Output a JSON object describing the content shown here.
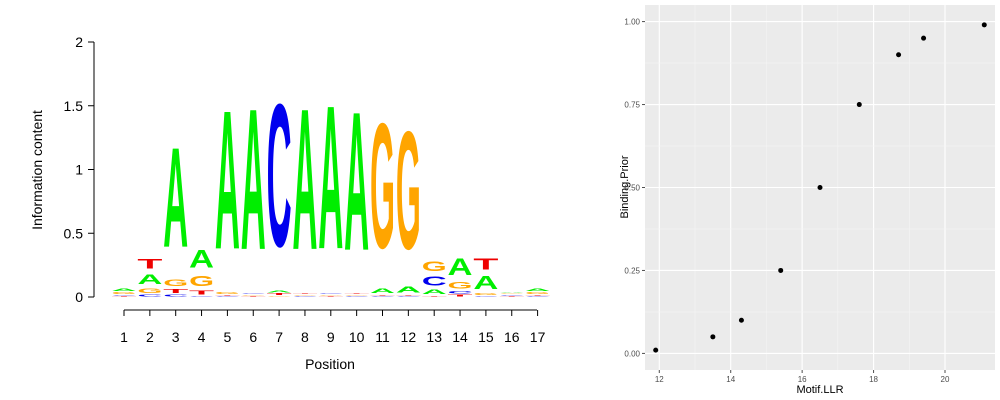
{
  "chart_data": [
    {
      "type": "sequence-logo",
      "xlabel": "Position",
      "ylabel": "Information content",
      "ylim": [
        0,
        2
      ],
      "y_ticks": [
        "0",
        "0.5",
        "1",
        "1.5",
        "2"
      ],
      "x_ticks": [
        "1",
        "2",
        "3",
        "4",
        "5",
        "6",
        "7",
        "8",
        "9",
        "10",
        "11",
        "12",
        "13",
        "14",
        "15",
        "16",
        "17"
      ],
      "letter_colors": {
        "A": "#00ee00",
        "C": "#0000ee",
        "G": "#ffa500",
        "T": "#ee0000"
      },
      "positions": [
        [
          {
            "l": "T",
            "h": 0.01
          },
          {
            "l": "C",
            "h": 0.01
          },
          {
            "l": "G",
            "h": 0.02
          },
          {
            "l": "A",
            "h": 0.03
          }
        ],
        [
          {
            "l": "C",
            "h": 0.02
          },
          {
            "l": "G",
            "h": 0.06
          },
          {
            "l": "A",
            "h": 0.12
          },
          {
            "l": "T",
            "h": 0.12
          }
        ],
        [
          {
            "l": "C",
            "h": 0.02
          },
          {
            "l": "T",
            "h": 0.05
          },
          {
            "l": "G",
            "h": 0.08
          },
          {
            "l": "A",
            "h": 1.25
          }
        ],
        [
          {
            "l": "C",
            "h": 0.01
          },
          {
            "l": "T",
            "h": 0.05
          },
          {
            "l": "G",
            "h": 0.13
          },
          {
            "l": "A",
            "h": 0.22
          }
        ],
        [
          {
            "l": "C",
            "h": 0.01
          },
          {
            "l": "T",
            "h": 0.01
          },
          {
            "l": "G",
            "h": 0.02
          },
          {
            "l": "A",
            "h": 1.74
          }
        ],
        [
          {
            "l": "T",
            "h": 0.01
          },
          {
            "l": "G",
            "h": 0.01
          },
          {
            "l": "C",
            "h": 0.01
          },
          {
            "l": "A",
            "h": 1.77
          }
        ],
        [
          {
            "l": "G",
            "h": 0.01
          },
          {
            "l": "T",
            "h": 0.02
          },
          {
            "l": "A",
            "h": 0.02
          },
          {
            "l": "C",
            "h": 1.79
          }
        ],
        [
          {
            "l": "C",
            "h": 0.01
          },
          {
            "l": "G",
            "h": 0.01
          },
          {
            "l": "T",
            "h": 0.01
          },
          {
            "l": "A",
            "h": 1.77
          }
        ],
        [
          {
            "l": "T",
            "h": 0.01
          },
          {
            "l": "G",
            "h": 0.01
          },
          {
            "l": "C",
            "h": 0.01
          },
          {
            "l": "A",
            "h": 1.8
          }
        ],
        [
          {
            "l": "C",
            "h": 0.01
          },
          {
            "l": "G",
            "h": 0.01
          },
          {
            "l": "T",
            "h": 0.01
          },
          {
            "l": "A",
            "h": 1.74
          }
        ],
        [
          {
            "l": "C",
            "h": 0.01
          },
          {
            "l": "T",
            "h": 0.01
          },
          {
            "l": "A",
            "h": 0.06
          },
          {
            "l": "G",
            "h": 1.57
          }
        ],
        [
          {
            "l": "C",
            "h": 0.01
          },
          {
            "l": "T",
            "h": 0.01
          },
          {
            "l": "A",
            "h": 0.07
          },
          {
            "l": "G",
            "h": 1.48
          }
        ],
        [
          {
            "l": "T",
            "h": 0.01
          },
          {
            "l": "A",
            "h": 0.06
          },
          {
            "l": "C",
            "h": 0.11
          },
          {
            "l": "G",
            "h": 0.12
          }
        ],
        [
          {
            "l": "T",
            "h": 0.02
          },
          {
            "l": "C",
            "h": 0.03
          },
          {
            "l": "G",
            "h": 0.08
          },
          {
            "l": "A",
            "h": 0.21
          }
        ],
        [
          {
            "l": "C",
            "h": 0.01
          },
          {
            "l": "G",
            "h": 0.02
          },
          {
            "l": "A",
            "h": 0.16
          },
          {
            "l": "T",
            "h": 0.14
          }
        ],
        [
          {
            "l": "T",
            "h": 0.01
          },
          {
            "l": "C",
            "h": 0.01
          },
          {
            "l": "G",
            "h": 0.01
          },
          {
            "l": "A",
            "h": 0.01
          }
        ],
        [
          {
            "l": "C",
            "h": 0.01
          },
          {
            "l": "T",
            "h": 0.01
          },
          {
            "l": "G",
            "h": 0.02
          },
          {
            "l": "A",
            "h": 0.03
          }
        ]
      ]
    },
    {
      "type": "scatter",
      "xlabel": "Motif.LLR",
      "ylabel": "Binding.Prior",
      "xlim": [
        11.6,
        21.4
      ],
      "ylim": [
        -0.05,
        1.05
      ],
      "x_ticks": [
        12,
        14,
        16,
        18,
        20
      ],
      "y_ticks": [
        "0.00",
        "0.25",
        "0.50",
        "0.75",
        "1.00"
      ],
      "grid": true,
      "points": [
        {
          "x": 11.9,
          "y": 0.01
        },
        {
          "x": 13.5,
          "y": 0.05
        },
        {
          "x": 14.3,
          "y": 0.1
        },
        {
          "x": 15.4,
          "y": 0.25
        },
        {
          "x": 16.5,
          "y": 0.5
        },
        {
          "x": 17.6,
          "y": 0.75
        },
        {
          "x": 18.7,
          "y": 0.9
        },
        {
          "x": 19.4,
          "y": 0.95
        },
        {
          "x": 21.1,
          "y": 0.99
        }
      ]
    }
  ]
}
